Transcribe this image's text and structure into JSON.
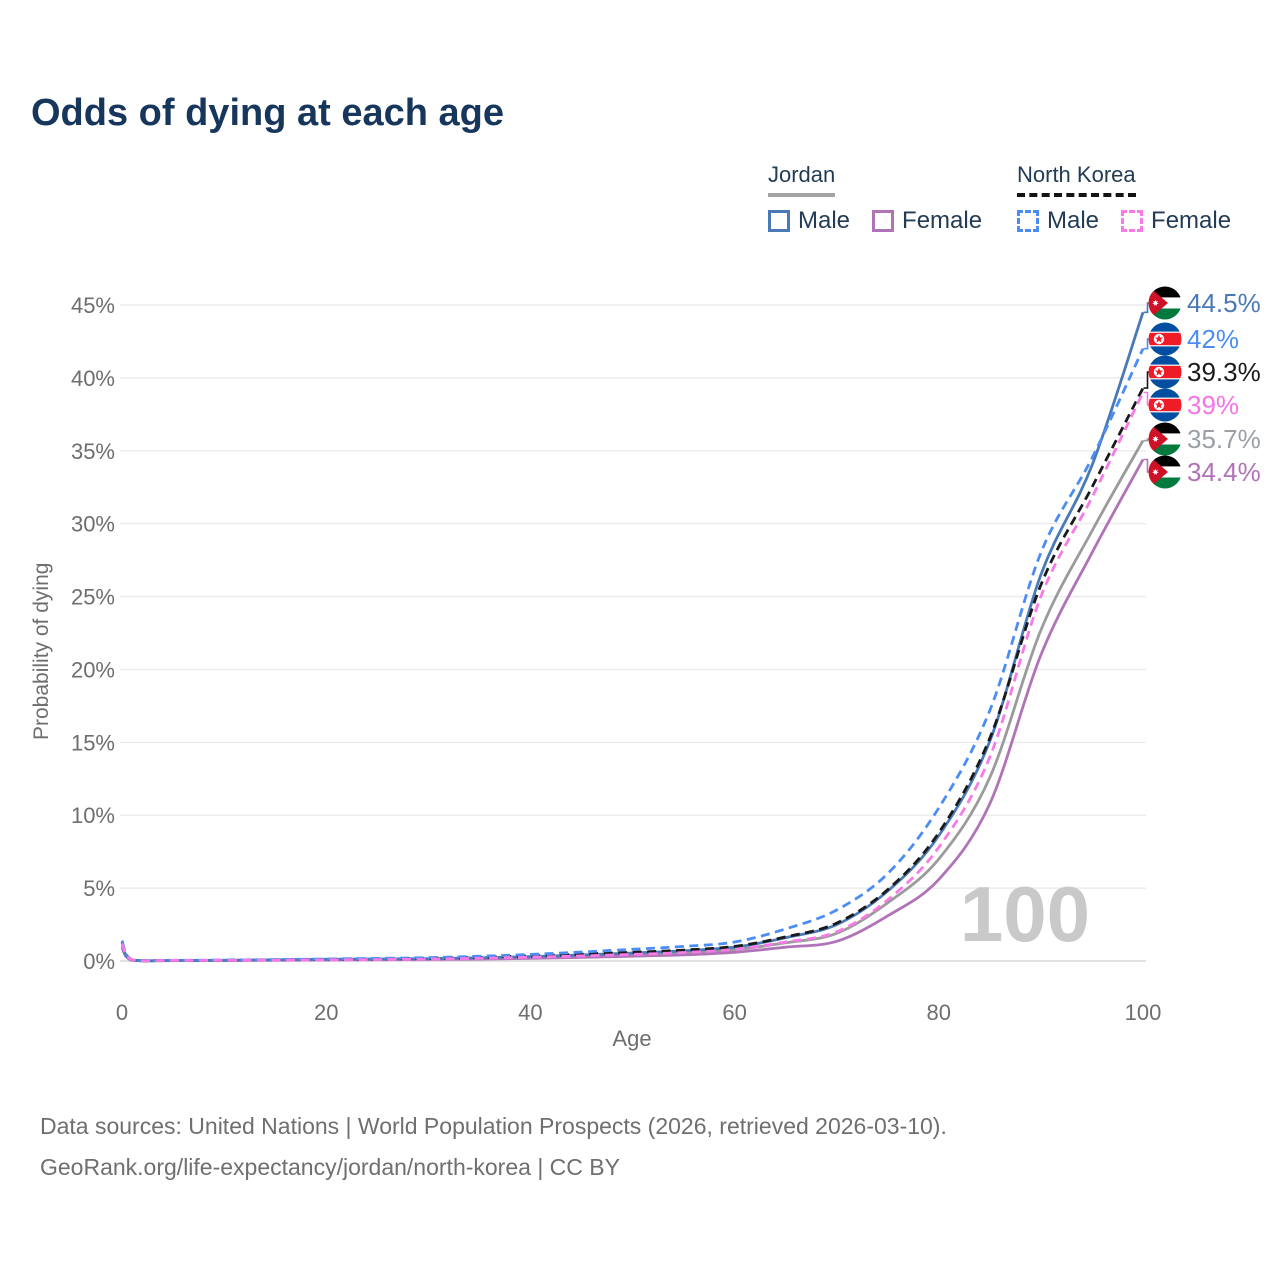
{
  "title": "Odds of dying at each age",
  "watermark": "100",
  "legend": {
    "groups": [
      {
        "label": "Jordan",
        "line_style": "solid",
        "line_color": "#a3a3a3",
        "items": [
          {
            "label": "Male",
            "color": "#4a7ab5",
            "dashed": false
          },
          {
            "label": "Female",
            "color": "#b173b8",
            "dashed": false
          }
        ]
      },
      {
        "label": "North Korea",
        "line_style": "dashed",
        "line_color": "#141414",
        "items": [
          {
            "label": "Male",
            "color": "#4c8df5",
            "dashed": true
          },
          {
            "label": "Female",
            "color": "#f87ae8",
            "dashed": true
          }
        ]
      }
    ]
  },
  "footer": {
    "line1": "Data sources: United Nations | World Population Prospects (2026, retrieved 2026-03-10).",
    "line2": "GeoRank.org/life-expectancy/jordan/north-korea | CC BY"
  },
  "chart_data": {
    "type": "line",
    "title": "Odds of dying at each age",
    "xlabel": "Age",
    "ylabel": "Probability of dying",
    "xlim": [
      0,
      100
    ],
    "ylim": [
      0,
      45
    ],
    "x_ticks": [
      "0",
      "20",
      "40",
      "60",
      "80",
      "100"
    ],
    "x_tick_values": [
      0,
      20,
      40,
      60,
      80,
      100
    ],
    "y_ticks": [
      "0%",
      "5%",
      "10%",
      "15%",
      "20%",
      "25%",
      "30%",
      "35%",
      "40%",
      "45%"
    ],
    "y_tick_values": [
      0,
      5,
      10,
      15,
      20,
      25,
      30,
      35,
      40,
      45
    ],
    "grid": true,
    "legend_position": "top-right",
    "ages": [
      0,
      1,
      5,
      10,
      20,
      30,
      40,
      50,
      55,
      60,
      65,
      70,
      75,
      80,
      85,
      90,
      95,
      100
    ],
    "series": [
      {
        "name": "Jordan Both sexes",
        "country": "Jordan",
        "sex": "Both",
        "color": "#9b9b9b",
        "label_color": "#9aa0a6",
        "dashed": false,
        "end_value": 35.7,
        "end_label": "35.7%",
        "values": [
          1.0,
          0.06,
          0.03,
          0.04,
          0.1,
          0.13,
          0.25,
          0.45,
          0.57,
          0.78,
          1.25,
          1.9,
          4.0,
          7.0,
          12.6,
          22.7,
          29.5,
          35.7
        ]
      },
      {
        "name": "Jordan Female",
        "country": "Jordan",
        "sex": "Female",
        "color": "#b173b8",
        "label_color": "#b173b8",
        "dashed": false,
        "end_value": 34.4,
        "end_label": "34.4%",
        "values": [
          0.9,
          0.05,
          0.03,
          0.03,
          0.07,
          0.1,
          0.18,
          0.33,
          0.42,
          0.6,
          0.95,
          1.35,
          3.1,
          5.6,
          10.8,
          21.0,
          28.0,
          34.4
        ]
      },
      {
        "name": "Jordan Male",
        "country": "Jordan",
        "sex": "Male",
        "color": "#4a7ab5",
        "label_color": "#4a7ab5",
        "dashed": false,
        "end_value": 44.5,
        "end_label": "44.5%",
        "values": [
          1.1,
          0.07,
          0.04,
          0.05,
          0.12,
          0.16,
          0.3,
          0.55,
          0.7,
          0.95,
          1.6,
          2.5,
          4.8,
          8.6,
          15.1,
          26.5,
          34.0,
          44.5
        ]
      },
      {
        "name": "North Korea Both sexes",
        "country": "North Korea",
        "sex": "Both",
        "color": "#1a1a1a",
        "label_color": "#1a1a1a",
        "dashed": true,
        "end_value": 39.3,
        "end_label": "39.3%",
        "values": [
          1.3,
          0.08,
          0.04,
          0.05,
          0.11,
          0.18,
          0.35,
          0.6,
          0.75,
          1.0,
          1.65,
          2.6,
          4.9,
          8.8,
          15.3,
          25.8,
          32.5,
          39.3
        ]
      },
      {
        "name": "North Korea Male",
        "country": "North Korea",
        "sex": "Male",
        "color": "#4c8df5",
        "label_color": "#4c8df5",
        "dashed": true,
        "end_value": 42.0,
        "end_label": "42%",
        "values": [
          1.4,
          0.09,
          0.05,
          0.06,
          0.14,
          0.23,
          0.45,
          0.8,
          1.0,
          1.3,
          2.2,
          3.5,
          6.0,
          10.5,
          17.2,
          28.0,
          34.5,
          42.0
        ]
      },
      {
        "name": "North Korea Female",
        "country": "North Korea",
        "sex": "Female",
        "color": "#f87ae8",
        "label_color": "#f673e6",
        "dashed": true,
        "end_value": 39.0,
        "end_label": "39%",
        "values": [
          1.2,
          0.08,
          0.04,
          0.04,
          0.08,
          0.13,
          0.26,
          0.45,
          0.58,
          0.8,
          1.3,
          2.0,
          4.2,
          7.8,
          14.0,
          25.0,
          31.8,
          39.0
        ]
      }
    ]
  }
}
